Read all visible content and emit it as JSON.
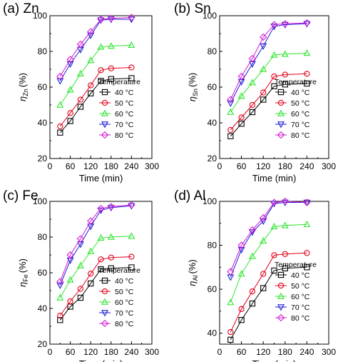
{
  "chart_data": [
    {
      "type": "line",
      "title": "(a) Zn",
      "xlabel": "Time (min)",
      "ylabel_main": "η",
      "ylabel_sub": "Zn",
      "ylabel_unit": "(%)",
      "xlim": [
        0,
        300
      ],
      "ylim": [
        20,
        100
      ],
      "xticks": [
        0,
        60,
        120,
        180,
        240,
        300
      ],
      "yticks": [
        20,
        40,
        60,
        80,
        100
      ],
      "grid": false,
      "legend_title": "Temperature",
      "legend_position": "bottom-right",
      "x": [
        30,
        60,
        90,
        120,
        150,
        180,
        240
      ],
      "series": [
        {
          "name": "40 °C",
          "values": [
            34.5,
            41,
            49,
            56.5,
            63.5,
            64.5,
            65
          ]
        },
        {
          "name": "50 °C",
          "values": [
            38,
            45.5,
            53,
            61,
            69.5,
            70.5,
            71
          ]
        },
        {
          "name": "60 °C",
          "values": [
            50,
            58.5,
            67.5,
            75,
            82.5,
            83,
            83.5
          ]
        },
        {
          "name": "70 °C",
          "values": [
            63.5,
            73,
            81,
            89,
            97.5,
            98,
            98
          ]
        },
        {
          "name": "80 °C",
          "values": [
            66,
            75.5,
            84,
            91,
            98,
            98.5,
            99
          ]
        }
      ]
    },
    {
      "type": "line",
      "title": "(b) Sn",
      "xlabel": "Time (min)",
      "ylabel_main": "η",
      "ylabel_sub": "Sn",
      "ylabel_unit": "(%)",
      "xlim": [
        0,
        300
      ],
      "ylim": [
        20,
        100
      ],
      "xticks": [
        0,
        60,
        120,
        180,
        240,
        300
      ],
      "yticks": [
        20,
        40,
        60,
        80,
        100
      ],
      "grid": false,
      "legend_title": "Temperature",
      "legend_position": "bottom-right",
      "x": [
        30,
        60,
        90,
        120,
        150,
        180,
        240
      ],
      "series": [
        {
          "name": "40 °C",
          "values": [
            32.5,
            39.5,
            46,
            53,
            60.5,
            61.5,
            62
          ]
        },
        {
          "name": "50 °C",
          "values": [
            36,
            43,
            50,
            57,
            66,
            67,
            67.5
          ]
        },
        {
          "name": "60 °C",
          "values": [
            46,
            55,
            62.5,
            70,
            78,
            78.5,
            79
          ]
        },
        {
          "name": "70 °C",
          "values": [
            51,
            63,
            73,
            83,
            94,
            95,
            95.5
          ]
        },
        {
          "name": "80 °C",
          "values": [
            53,
            66,
            76,
            88,
            95,
            95.5,
            96
          ]
        }
      ]
    },
    {
      "type": "line",
      "title": "(c) Fe",
      "xlabel": "Time (min)",
      "ylabel_main": "η",
      "ylabel_sub": "Fe",
      "ylabel_unit": "(%)",
      "xlim": [
        0,
        300
      ],
      "ylim": [
        20,
        100
      ],
      "xticks": [
        0,
        60,
        120,
        180,
        240,
        300
      ],
      "yticks": [
        20,
        40,
        60,
        80,
        100
      ],
      "grid": false,
      "legend_title": "Temperature",
      "legend_position": "bottom-right",
      "x": [
        30,
        60,
        90,
        120,
        150,
        180,
        240
      ],
      "series": [
        {
          "name": "40 °C",
          "values": [
            33.5,
            41,
            46,
            54,
            62,
            62.5,
            63
          ]
        },
        {
          "name": "50 °C",
          "values": [
            36,
            44,
            51,
            59.5,
            67.5,
            68.5,
            69
          ]
        },
        {
          "name": "60 °C",
          "values": [
            46,
            56,
            64,
            72,
            79.5,
            80,
            80.5
          ]
        },
        {
          "name": "70 °C",
          "values": [
            53,
            67,
            76,
            86,
            95,
            96.5,
            97.5
          ]
        },
        {
          "name": "80 °C",
          "values": [
            55,
            70,
            79,
            89,
            96,
            97,
            98
          ]
        }
      ]
    },
    {
      "type": "line",
      "title": "(d) Al",
      "xlabel": "Time (min)",
      "ylabel_main": "η",
      "ylabel_sub": "Al",
      "ylabel_unit": "(%)",
      "xlim": [
        0,
        300
      ],
      "ylim": [
        35,
        100
      ],
      "xticks": [
        0,
        60,
        120,
        180,
        240,
        300
      ],
      "yticks": [
        40,
        60,
        80,
        100
      ],
      "grid": false,
      "legend_title": "Temperature",
      "legend_position": "bottom-right",
      "x": [
        30,
        60,
        90,
        120,
        150,
        180,
        240
      ],
      "series": [
        {
          "name": "40 °C",
          "values": [
            37,
            46,
            53.5,
            60.5,
            68.5,
            69.5,
            70
          ]
        },
        {
          "name": "50 °C",
          "values": [
            40.5,
            51,
            59,
            67,
            75.5,
            76,
            76.5
          ]
        },
        {
          "name": "60 °C",
          "values": [
            54,
            67,
            75,
            82,
            88.5,
            89,
            89.5
          ]
        },
        {
          "name": "70 °C",
          "values": [
            65.5,
            78,
            86,
            91,
            99,
            99.5,
            99.5
          ]
        },
        {
          "name": "80 °C",
          "values": [
            68,
            80,
            87,
            92.5,
            99.5,
            100,
            99.5
          ]
        }
      ]
    }
  ],
  "series_style": {
    "colors": [
      "#000000",
      "#e3001b",
      "#2ee62e",
      "#1a1ad6",
      "#d21ad2"
    ],
    "markers": [
      "square",
      "circle",
      "triangle-up",
      "triangle-down",
      "diamond"
    ]
  }
}
